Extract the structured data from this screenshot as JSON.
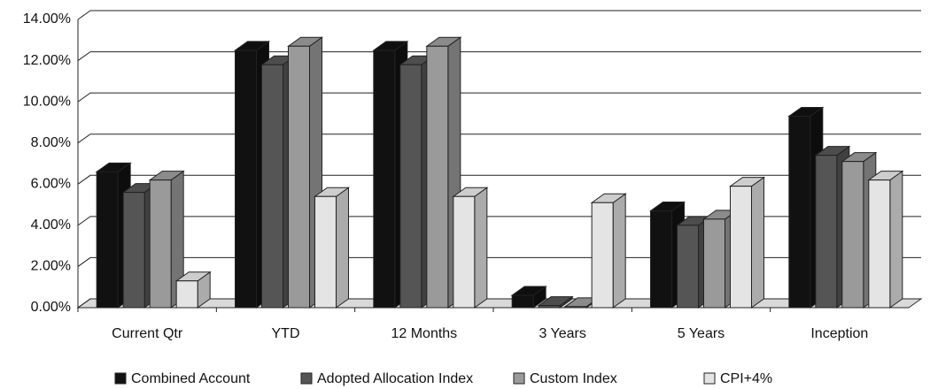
{
  "chart_data": {
    "type": "bar3d",
    "categories": [
      "Current Qtr",
      "YTD",
      "12 Months",
      "3 Years",
      "5 Years",
      "Inception"
    ],
    "series": [
      {
        "name": "Combined Account",
        "color": "#111111",
        "values": [
          6.6,
          12.5,
          12.5,
          0.6,
          4.7,
          9.3
        ]
      },
      {
        "name": "Adopted Allocation Index",
        "color": "#555555",
        "values": [
          5.6,
          11.8,
          11.8,
          0.1,
          4.0,
          7.4
        ]
      },
      {
        "name": "Custom Index",
        "color": "#9a9a9a",
        "values": [
          6.2,
          12.7,
          12.7,
          0.05,
          4.3,
          7.1
        ]
      },
      {
        "name": "CPI+4%",
        "color": "#e4e4e4",
        "values": [
          1.3,
          5.4,
          5.4,
          5.1,
          5.9,
          6.2
        ]
      }
    ],
    "ylim": [
      0,
      14
    ],
    "yticks": [
      {
        "value": 0,
        "label": "0.00%"
      },
      {
        "value": 2,
        "label": "2.00%"
      },
      {
        "value": 4,
        "label": "4.00%"
      },
      {
        "value": 6,
        "label": "6.00%"
      },
      {
        "value": 8,
        "label": "8.00%"
      },
      {
        "value": 10,
        "label": "10.00%"
      },
      {
        "value": 12,
        "label": "12.00%"
      },
      {
        "value": 14,
        "label": "14.00%"
      }
    ],
    "grid": true,
    "legend": "bottom"
  }
}
